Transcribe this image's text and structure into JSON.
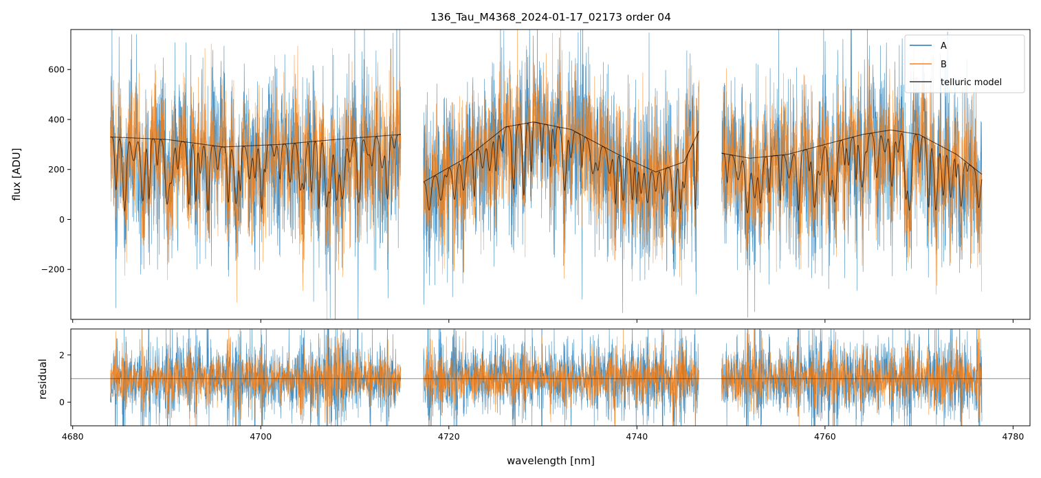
{
  "chart_data": [
    {
      "type": "line",
      "title": "136_Tau_M4368_2024-01-17_02173  order 04",
      "xlabel": "",
      "ylabel": "flux [ADU]",
      "xlim": [
        4679.8,
        4781.8
      ],
      "ylim": [
        -400,
        760
      ],
      "xticks": [
        4680,
        4700,
        4720,
        4740,
        4760,
        4780
      ],
      "yticks": [
        -200,
        0,
        200,
        400,
        600
      ],
      "ytick_labels": [
        "−200",
        "0",
        "200",
        "400",
        "600"
      ],
      "segments": [
        [
          4684.0,
          4714.9
        ],
        [
          4717.3,
          4746.6
        ],
        [
          4749.0,
          4776.7
        ]
      ],
      "series": [
        {
          "name": "A",
          "color": "#1f77b4",
          "kind": "noisy-spectrum",
          "noise_scale": 160
        },
        {
          "name": "B",
          "color": "#ff7f0e",
          "kind": "noisy-spectrum",
          "noise_scale": 130
        },
        {
          "name": "telluric model",
          "color": "#000000",
          "kind": "model",
          "continuum_points": [
            [
              4684.0,
              330
            ],
            [
              4690,
              320
            ],
            [
              4696,
              290
            ],
            [
              4702,
              300
            ],
            [
              4708,
              320
            ],
            [
              4714.9,
              340
            ],
            [
              4717.3,
              150
            ],
            [
              4722,
              250
            ],
            [
              4726,
              370
            ],
            [
              4729,
              390
            ],
            [
              4733,
              360
            ],
            [
              4738,
              260
            ],
            [
              4742,
              190
            ],
            [
              4745,
              230
            ],
            [
              4746.6,
              355
            ],
            [
              4749.0,
              265
            ],
            [
              4752,
              245
            ],
            [
              4756,
              260
            ],
            [
              4760,
              300
            ],
            [
              4764,
              340
            ],
            [
              4767,
              358
            ],
            [
              4770,
              340
            ],
            [
              4774,
              260
            ],
            [
              4776.7,
              180
            ]
          ]
        }
      ],
      "legend": {
        "location": "top-right",
        "entries": [
          "A",
          "B",
          "telluric model"
        ]
      }
    },
    {
      "type": "line",
      "title": "",
      "xlabel": "wavelength [nm]",
      "ylabel": "residual",
      "xlim": [
        4679.8,
        4781.8
      ],
      "ylim": [
        -1.0,
        3.1
      ],
      "xticks": [
        4680,
        4700,
        4720,
        4740,
        4760,
        4780
      ],
      "xtick_labels": [
        "4680",
        "4700",
        "4720",
        "4740",
        "4760",
        "4780"
      ],
      "yticks": [
        0,
        2
      ],
      "ytick_labels": [
        "0",
        "2"
      ],
      "reference_line": 1.0,
      "series": [
        {
          "name": "A",
          "color": "#1f77b4",
          "center": 1.0,
          "spread": 0.55
        },
        {
          "name": "B",
          "color": "#ff7f0e",
          "center": 1.0,
          "spread": 0.35
        }
      ]
    }
  ],
  "colors": {
    "A": "#1f77b4",
    "B": "#ff7f0e",
    "model": "#000000"
  }
}
